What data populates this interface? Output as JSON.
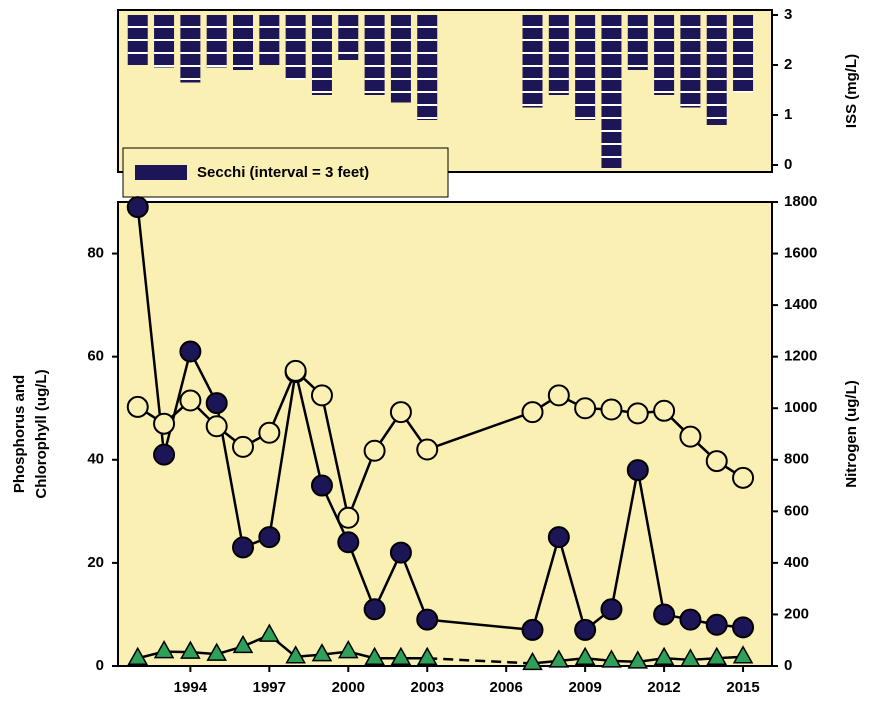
{
  "chart_data": [
    {
      "type": "bar",
      "x": [
        1992,
        1993,
        1994,
        1995,
        1996,
        1997,
        1998,
        1999,
        2000,
        2001,
        2002,
        2003,
        2007,
        2008,
        2009,
        2010,
        2011,
        2012,
        2013,
        2014,
        2015
      ],
      "xlim": [
        1991.25,
        2016.1
      ],
      "series": [
        {
          "name": "Secchi (interval = 3 feet)",
          "color": "#1c1556",
          "values": [
            2.0,
            1.95,
            1.65,
            1.95,
            1.9,
            2.0,
            1.7,
            1.4,
            2.1,
            1.4,
            1.25,
            0.9,
            1.15,
            1.4,
            0.9,
            -0.06,
            1.9,
            1.4,
            1.15,
            0.8,
            1.45
          ]
        }
      ],
      "y2lim": [
        -0.14,
        3.1
      ],
      "y2ticks": [
        0,
        1,
        2,
        3
      ],
      "y2label": "ISS (mg/L)",
      "legend": "lower left",
      "background": "#fbf0b4"
    },
    {
      "type": "line",
      "x": [
        1992,
        1993,
        1994,
        1995,
        1996,
        1997,
        1998,
        1999,
        2000,
        2001,
        2002,
        2003,
        2007,
        2008,
        2009,
        2010,
        2011,
        2012,
        2013,
        2014,
        2015
      ],
      "xlim": [
        1991.25,
        2016.1
      ],
      "xticks": [
        1994,
        1997,
        2000,
        2003,
        2006,
        2009,
        2012,
        2015
      ],
      "ylim": [
        0,
        90
      ],
      "yticks": [
        0,
        20,
        40,
        60,
        80
      ],
      "ylabel": [
        "Phosphorus and",
        "Chlorophyll (ug/L)"
      ],
      "y2lim": [
        0,
        1800
      ],
      "y2ticks": [
        0,
        200,
        400,
        600,
        800,
        1000,
        1200,
        1400,
        1600,
        1800
      ],
      "y2label": "Nitrogen (ug/L)",
      "background": "#fbf0b4",
      "series": [
        {
          "color": "#1c1556",
          "marker": "circle",
          "values": [
            89,
            41,
            61,
            51,
            23,
            25,
            57,
            35,
            24,
            11,
            22,
            9,
            7,
            25,
            7,
            11,
            38,
            10,
            9,
            8,
            7.5
          ]
        },
        {
          "color": "#fbf0b4",
          "marker": "circle",
          "axis": "y2",
          "values": [
            1005,
            940,
            1030,
            930,
            850,
            905,
            1145,
            1050,
            575,
            835,
            985,
            840,
            985,
            1050,
            1000,
            995,
            980,
            990,
            890,
            795,
            730
          ]
        },
        {
          "color": "#2ea05a",
          "marker": "triangle",
          "gap_style": "dashed",
          "values": [
            1.5,
            2.8,
            2.7,
            2.3,
            3.8,
            6,
            1.8,
            2.2,
            2.8,
            1.5,
            1.5,
            1.5,
            0.5,
            1,
            1.5,
            1,
            0.8,
            1.5,
            1.2,
            1.5,
            1.8
          ]
        }
      ]
    }
  ]
}
